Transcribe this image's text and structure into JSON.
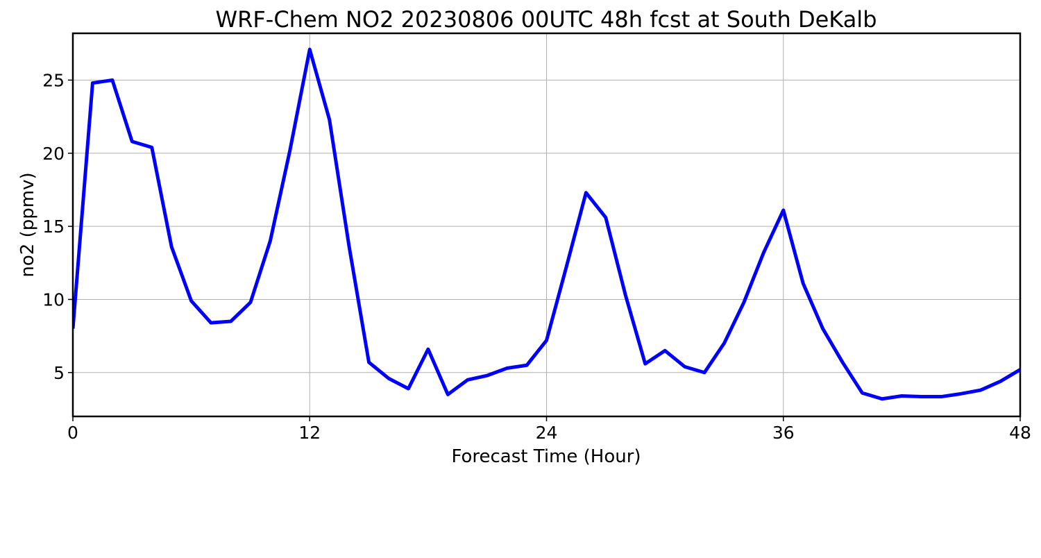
{
  "chart_data": {
    "type": "line",
    "title": "WRF-Chem NO2  20230806 00UTC 48h fcst at South DeKalb",
    "xlabel": "Forecast Time (Hour)",
    "ylabel": "no2  (ppmv)",
    "xlim": [
      0,
      48
    ],
    "ylim": [
      2,
      28.2
    ],
    "xticks": [
      0,
      12,
      24,
      36,
      48
    ],
    "yticks": [
      5,
      10,
      15,
      20,
      25
    ],
    "grid": true,
    "line_color": "#0000ff",
    "series": [
      {
        "x": [
          0,
          1,
          2,
          3,
          4,
          5,
          6,
          7,
          8,
          9,
          10,
          11,
          12,
          13,
          14,
          15,
          16,
          17,
          18,
          19,
          20,
          21,
          22,
          23,
          24,
          25,
          26,
          27,
          28,
          29,
          30,
          31,
          32,
          33,
          34,
          35,
          36,
          37,
          38,
          39,
          40,
          41,
          42,
          43,
          44,
          45,
          46,
          47,
          48
        ],
        "y": [
          8.0,
          24.8,
          25.0,
          20.8,
          20.4,
          13.6,
          9.9,
          8.4,
          8.5,
          9.8,
          14.0,
          20.2,
          27.1,
          22.3,
          13.6,
          5.7,
          4.6,
          3.9,
          6.6,
          3.5,
          4.5,
          4.8,
          5.3,
          5.5,
          7.2,
          12.2,
          17.3,
          15.6,
          10.3,
          5.6,
          6.5,
          5.4,
          5.0,
          7.0,
          9.8,
          13.2,
          16.1,
          11.1,
          8.0,
          5.7,
          3.6,
          3.2,
          3.4,
          3.35,
          3.35,
          3.55,
          3.8,
          4.4,
          5.2
        ]
      }
    ]
  }
}
